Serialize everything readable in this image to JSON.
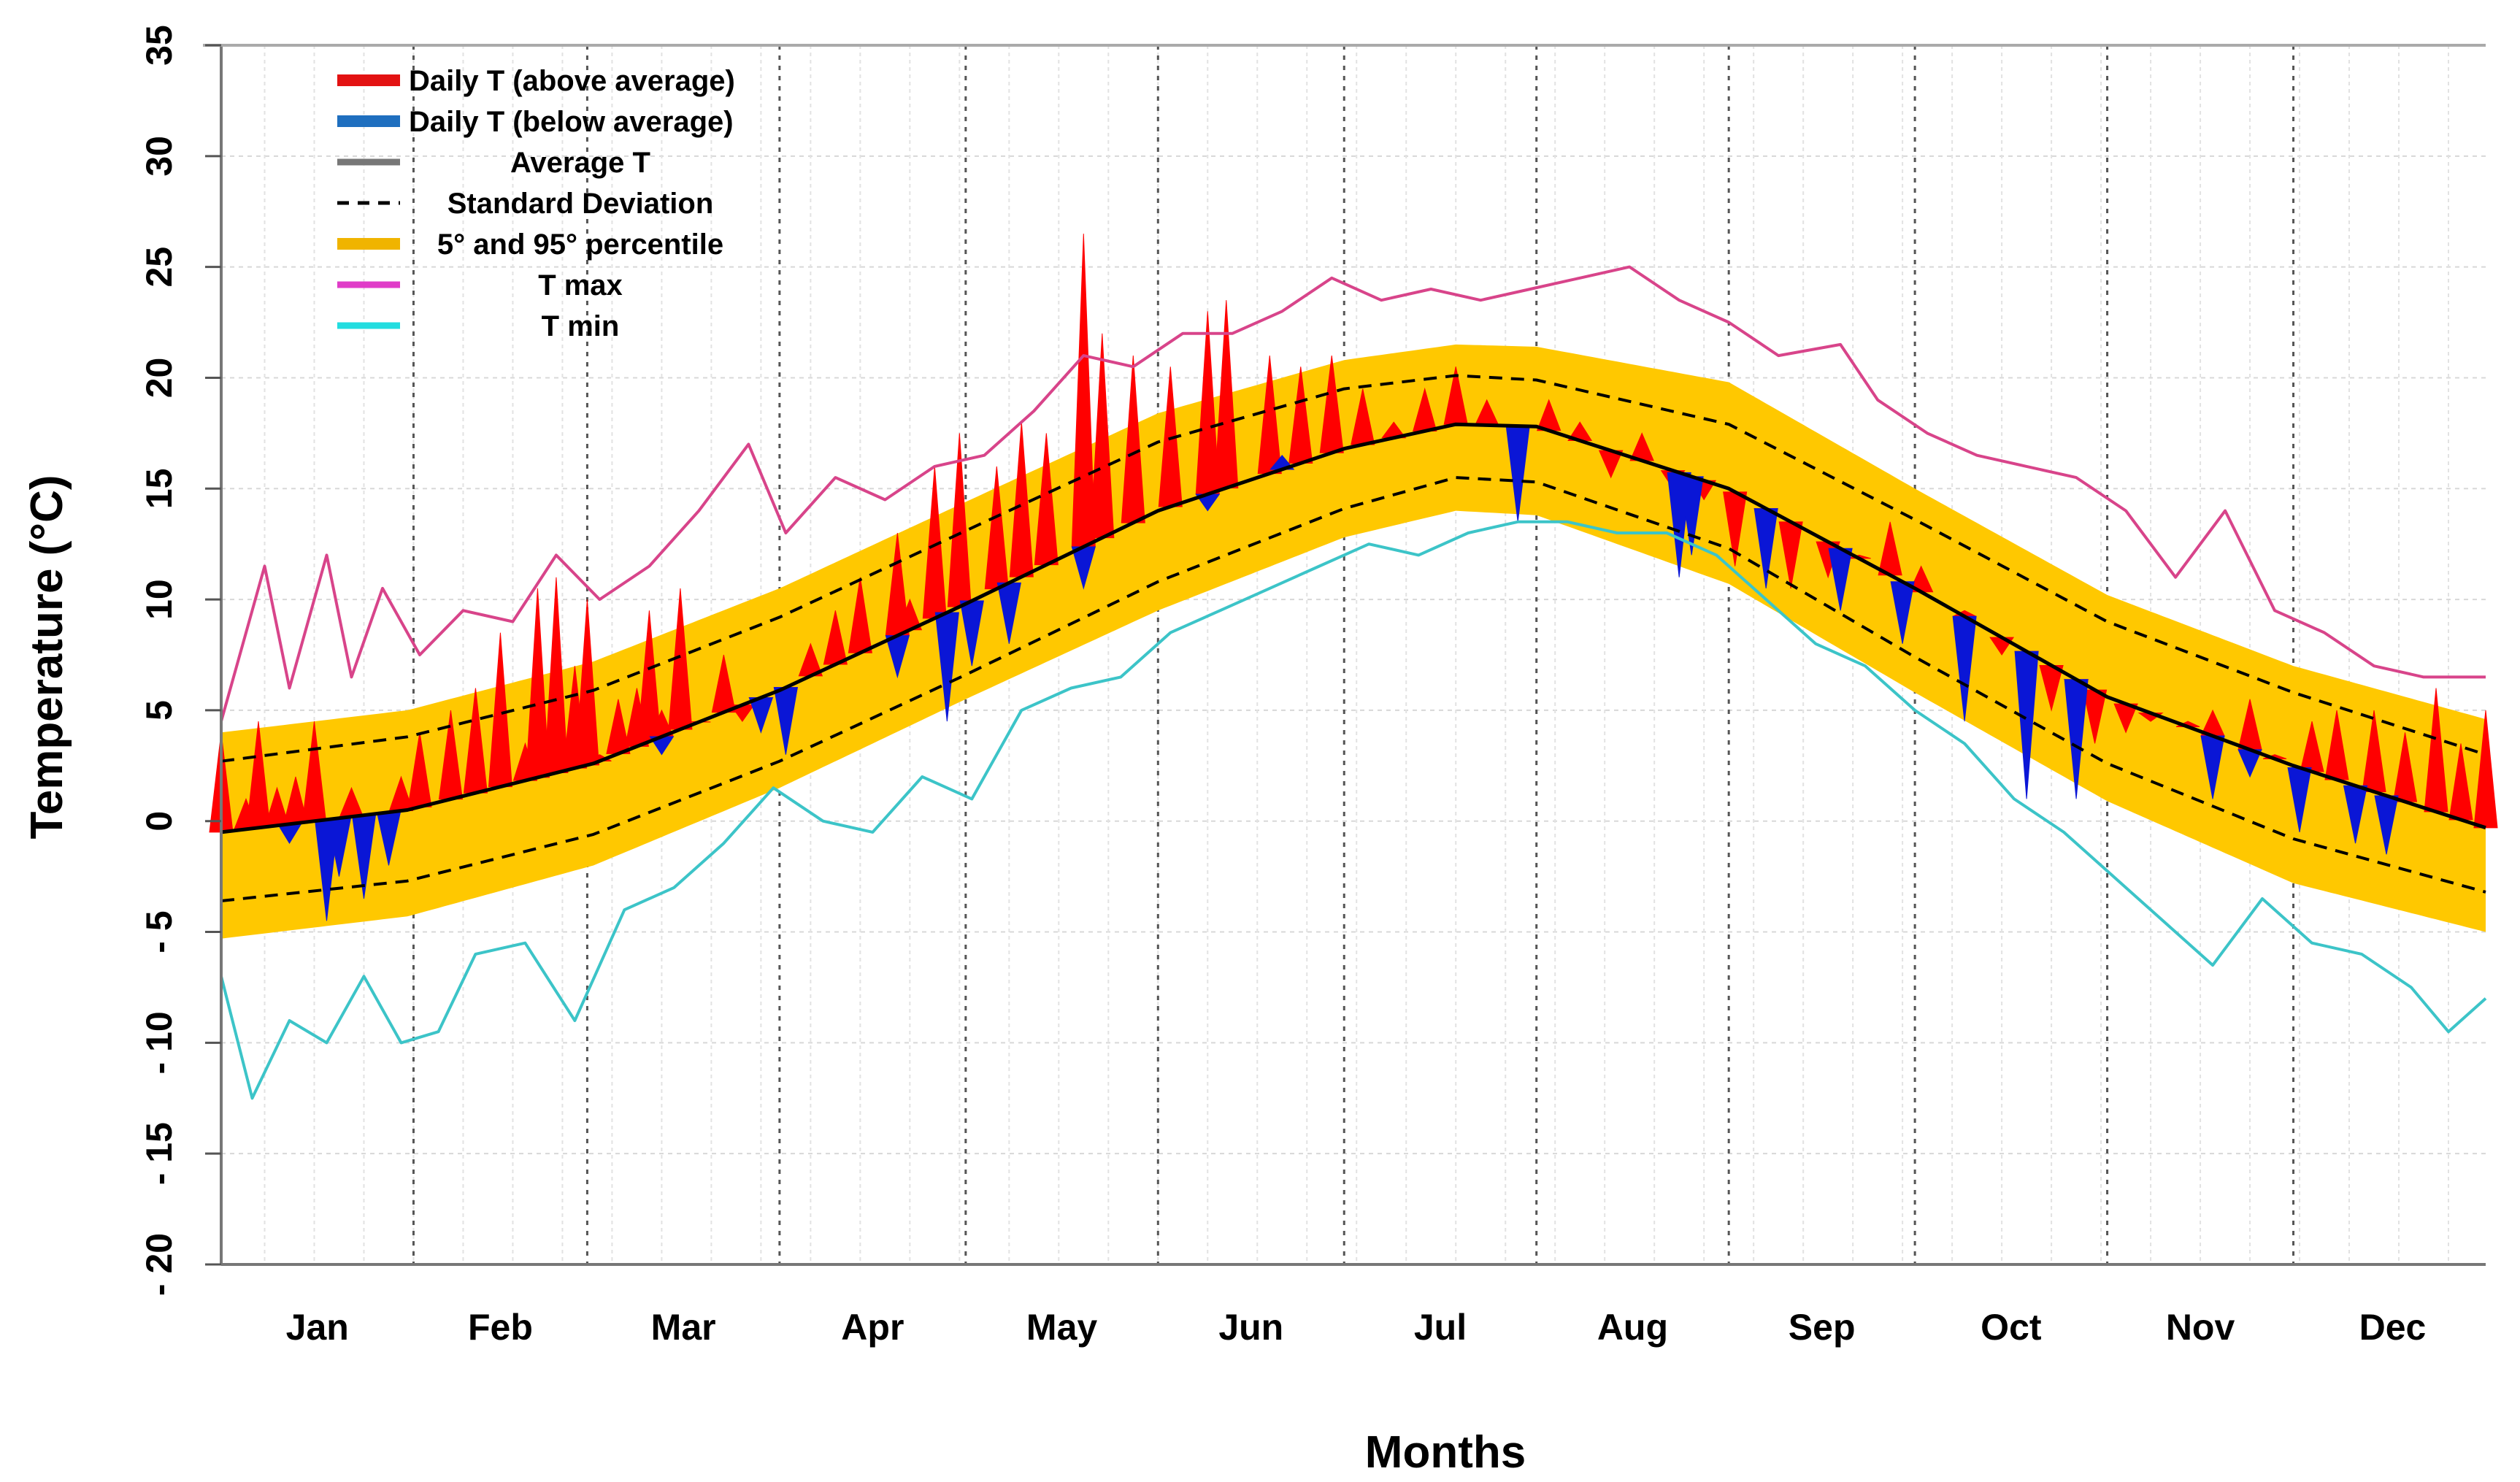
{
  "chart_data": {
    "type": "area",
    "title": "",
    "xlabel": "Months",
    "ylabel": "Temperature (°C)",
    "ylim": [
      -20,
      35
    ],
    "yticks": [
      35,
      30,
      25,
      20,
      15,
      10,
      5,
      0,
      -5,
      -10,
      -15,
      -20
    ],
    "ytick_labels": [
      "35",
      "30",
      "25",
      "20",
      "15",
      "10",
      "5",
      "0",
      "- 5",
      "- 10",
      "- 15",
      "- 20"
    ],
    "xlim_days": [
      1,
      366
    ],
    "months": [
      "Jan",
      "Feb",
      "Mar",
      "Apr",
      "May",
      "Jun",
      "Jul",
      "Aug",
      "Sep",
      "Oct",
      "Nov",
      "Dec"
    ],
    "month_boundaries_day": [
      32,
      60,
      91,
      121,
      152,
      182,
      213,
      244,
      274,
      305,
      335
    ],
    "legend": {
      "position": "top-left",
      "entries": [
        {
          "label": "Daily T (above average)",
          "color": "#e31212",
          "style": "bar"
        },
        {
          "label": "Daily T (below average)",
          "color": "#1f6fbf",
          "style": "bar"
        },
        {
          "label": "Average T",
          "color": "#777777",
          "style": "line"
        },
        {
          "label": "Standard Deviation",
          "color": "#000000",
          "style": "dashed"
        },
        {
          "label": "5° and 95° percentile",
          "color": "#f0b400",
          "style": "bar"
        },
        {
          "label": "T max",
          "color": "#e03cc8",
          "style": "line"
        },
        {
          "label": "T min",
          "color": "#22dde0",
          "style": "line"
        }
      ]
    },
    "colors": {
      "above": "#ff0000",
      "below": "#0a16d6",
      "band": "#ffc800",
      "tmax": "#d8448a",
      "tmin": "#3cc4c8",
      "average": "#000000",
      "sd": "#000000"
    },
    "series": [
      {
        "name": "Average T",
        "x": [
          1,
          31,
          61,
          91,
          121,
          152,
          182,
          200,
          213,
          244,
          274,
          305,
          335,
          366
        ],
        "values": [
          -0.5,
          0.5,
          2.6,
          5.9,
          9.8,
          14.0,
          16.8,
          17.9,
          17.8,
          15.0,
          10.5,
          5.6,
          2.5,
          -0.3
        ]
      },
      {
        "name": "Standard Deviation (upper)",
        "x": [
          1,
          31,
          61,
          91,
          121,
          152,
          182,
          200,
          213,
          244,
          274,
          305,
          335,
          366
        ],
        "values": [
          2.7,
          3.8,
          5.9,
          9.2,
          13.1,
          17.1,
          19.5,
          20.1,
          19.9,
          17.9,
          13.6,
          9.0,
          5.8,
          3.0
        ]
      },
      {
        "name": "Standard Deviation (lower)",
        "x": [
          1,
          31,
          61,
          91,
          121,
          152,
          182,
          200,
          213,
          244,
          274,
          305,
          335,
          366
        ],
        "values": [
          -3.6,
          -2.7,
          -0.6,
          2.7,
          6.6,
          10.8,
          14.1,
          15.5,
          15.3,
          12.3,
          7.4,
          2.6,
          -0.8,
          -3.2
        ]
      },
      {
        "name": "95° percentile",
        "x": [
          1,
          31,
          61,
          91,
          121,
          152,
          182,
          200,
          213,
          244,
          274,
          305,
          335,
          366
        ],
        "values": [
          4.0,
          5.0,
          7.2,
          10.5,
          14.4,
          18.4,
          20.8,
          21.5,
          21.4,
          19.8,
          15.0,
          10.2,
          7.0,
          4.6
        ]
      },
      {
        "name": "5° percentile",
        "x": [
          1,
          31,
          61,
          91,
          121,
          152,
          182,
          200,
          213,
          244,
          274,
          305,
          335,
          366
        ],
        "values": [
          -5.3,
          -4.3,
          -2.0,
          1.5,
          5.5,
          9.5,
          12.8,
          14.0,
          13.8,
          10.7,
          5.8,
          0.9,
          -2.8,
          -5.0
        ]
      },
      {
        "name": "T max",
        "x": [
          1,
          8,
          12,
          18,
          22,
          27,
          33,
          40,
          48,
          55,
          62,
          70,
          78,
          86,
          92,
          100,
          108,
          116,
          124,
          132,
          140,
          148,
          156,
          164,
          172,
          180,
          188,
          196,
          204,
          212,
          220,
          228,
          236,
          244,
          252,
          262,
          268,
          276,
          284,
          292,
          300,
          308,
          316,
          324,
          332,
          340,
          348,
          356,
          366
        ],
        "values": [
          4.5,
          11.5,
          6.0,
          12.0,
          6.5,
          10.5,
          7.5,
          9.5,
          9.0,
          12.0,
          10.0,
          11.5,
          14.0,
          17.0,
          13.0,
          15.5,
          14.5,
          16.0,
          16.5,
          18.5,
          21.0,
          20.5,
          22.0,
          22.0,
          23.0,
          24.5,
          23.5,
          24.0,
          23.5,
          24.0,
          24.5,
          25.0,
          23.5,
          22.5,
          21.0,
          21.5,
          19.0,
          17.5,
          16.5,
          16.0,
          15.5,
          14.0,
          11.0,
          14.0,
          9.5,
          8.5,
          7.0,
          6.5,
          6.5
        ]
      },
      {
        "name": "T min",
        "x": [
          1,
          6,
          12,
          18,
          24,
          30,
          36,
          42,
          50,
          58,
          66,
          74,
          82,
          90,
          98,
          106,
          114,
          122,
          130,
          138,
          146,
          154,
          162,
          170,
          178,
          186,
          194,
          202,
          210,
          218,
          226,
          234,
          242,
          250,
          258,
          266,
          274,
          282,
          290,
          298,
          306,
          314,
          322,
          330,
          338,
          346,
          354,
          360,
          366
        ],
        "values": [
          -7.0,
          -12.5,
          -9.0,
          -10.0,
          -7.0,
          -10.0,
          -9.5,
          -6.0,
          -5.5,
          -9.0,
          -4.0,
          -3.0,
          -1.0,
          1.5,
          0.0,
          -0.5,
          2.0,
          1.0,
          5.0,
          6.0,
          6.5,
          8.5,
          9.5,
          10.5,
          11.5,
          12.5,
          12.0,
          13.0,
          13.5,
          13.5,
          13.0,
          13.0,
          12.0,
          10.0,
          8.0,
          7.0,
          5.0,
          3.5,
          1.0,
          -0.5,
          -2.5,
          -4.5,
          -6.5,
          -3.5,
          -5.5,
          -6.0,
          -7.5,
          -9.5,
          -8.0
        ]
      },
      {
        "name": "Daily T (above average)",
        "x": [
          1,
          5,
          7,
          10,
          13,
          16,
          22,
          30,
          33,
          38,
          42,
          46,
          50,
          52,
          55,
          58,
          60,
          62,
          65,
          68,
          70,
          72,
          75,
          78,
          82,
          85,
          88,
          92,
          96,
          100,
          104,
          110,
          112,
          116,
          120,
          126,
          130,
          134,
          140,
          143,
          148,
          154,
          160,
          163,
          170,
          175,
          180,
          185,
          190,
          195,
          200,
          205,
          210,
          215,
          220,
          225,
          230,
          235,
          240,
          245,
          250,
          254,
          260,
          265,
          270,
          275,
          282,
          288,
          292,
          296,
          300,
          303,
          308,
          312,
          318,
          322,
          328,
          332,
          338,
          342,
          348,
          353,
          358,
          362,
          366
        ],
        "values": [
          4.0,
          1.0,
          4.5,
          1.5,
          2.0,
          4.5,
          1.5,
          2.0,
          4.0,
          5.0,
          6.0,
          8.5,
          3.5,
          10.5,
          11.0,
          7.0,
          10.0,
          3.0,
          5.5,
          6.0,
          9.5,
          5.0,
          10.5,
          4.5,
          7.5,
          4.5,
          5.0,
          3.5,
          8.0,
          9.5,
          11.0,
          13.0,
          10.0,
          16.0,
          17.5,
          16.0,
          18.0,
          17.5,
          26.5,
          22.0,
          21.0,
          20.5,
          23.0,
          23.5,
          21.0,
          20.5,
          21.0,
          19.5,
          18.0,
          19.5,
          20.5,
          19.0,
          17.0,
          19.0,
          18.0,
          15.5,
          17.5,
          15.0,
          14.5,
          11.5,
          12.5,
          10.5,
          11.0,
          12.0,
          13.5,
          11.5,
          9.5,
          7.5,
          6.5,
          5.0,
          6.0,
          3.5,
          4.0,
          4.5,
          4.5,
          5.0,
          5.5,
          3.0,
          4.5,
          5.0,
          5.0,
          4.0,
          6.0,
          3.5,
          5.0
        ]
      },
      {
        "name": "Daily T (below average)",
        "x": [
          12,
          18,
          20,
          24,
          28,
          72,
          88,
          92,
          110,
          118,
          122,
          128,
          140,
          160,
          172,
          210,
          236,
          238,
          250,
          262,
          272,
          282,
          292,
          300,
          322,
          328,
          336,
          345,
          350
        ],
        "values": [
          -1.0,
          -4.5,
          -2.5,
          -3.5,
          -2.0,
          3.0,
          4.0,
          3.0,
          6.5,
          4.5,
          7.0,
          8.0,
          10.5,
          14.0,
          16.5,
          13.5,
          11.0,
          12.0,
          10.5,
          9.5,
          8.0,
          4.5,
          1.0,
          1.0,
          1.0,
          2.0,
          -0.5,
          -1.0,
          -1.5
        ]
      }
    ]
  }
}
